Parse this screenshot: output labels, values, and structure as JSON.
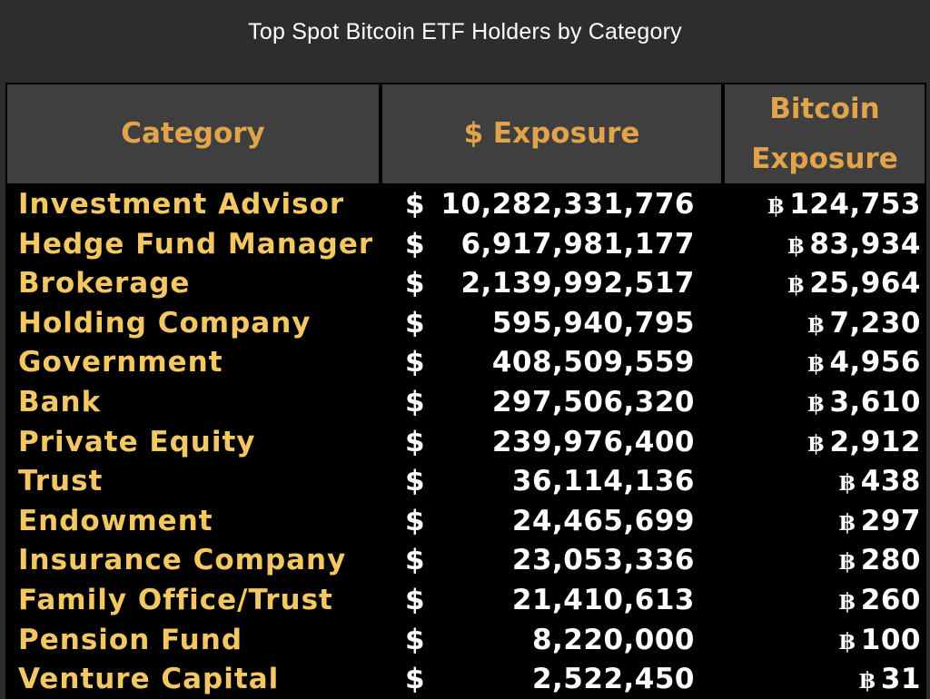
{
  "title": "Top Spot Bitcoin ETF Holders by Category",
  "headers": {
    "category": "Category",
    "usd": "$ Exposure",
    "btc_line1": "Bitcoin",
    "btc_line2": "Exposure"
  },
  "colors": {
    "header_text": "#e2a44a",
    "category_text": "#f3c863",
    "value_text": "#ffffff",
    "header_bg": "#3f3f3f",
    "table_bg": "#000000",
    "page_bg": "#2d2d2d"
  },
  "chart_data": {
    "type": "table",
    "title": "Top Spot Bitcoin ETF Holders by Category",
    "columns": [
      "Category",
      "$ Exposure",
      "Bitcoin Exposure"
    ],
    "currency_symbol": "$",
    "btc_symbol": "฿",
    "rows": [
      {
        "category": "Investment Advisor",
        "usd": "10,282,331,776",
        "btc": "124,753"
      },
      {
        "category": "Hedge Fund Manager",
        "usd": "6,917,981,177",
        "btc": "83,934"
      },
      {
        "category": "Brokerage",
        "usd": "2,139,992,517",
        "btc": "25,964"
      },
      {
        "category": "Holding Company",
        "usd": "595,940,795",
        "btc": "7,230"
      },
      {
        "category": "Government",
        "usd": "408,509,559",
        "btc": "4,956"
      },
      {
        "category": "Bank",
        "usd": "297,506,320",
        "btc": "3,610"
      },
      {
        "category": "Private Equity",
        "usd": "239,976,400",
        "btc": "2,912"
      },
      {
        "category": "Trust",
        "usd": "36,114,136",
        "btc": "438"
      },
      {
        "category": "Endowment",
        "usd": "24,465,699",
        "btc": "297"
      },
      {
        "category": "Insurance Company",
        "usd": "23,053,336",
        "btc": "280"
      },
      {
        "category": "Family Office/Trust",
        "usd": "21,410,613",
        "btc": "260"
      },
      {
        "category": "Pension Fund",
        "usd": "8,220,000",
        "btc": "100"
      },
      {
        "category": "Venture Capital",
        "usd": "2,522,450",
        "btc": "31"
      }
    ]
  }
}
